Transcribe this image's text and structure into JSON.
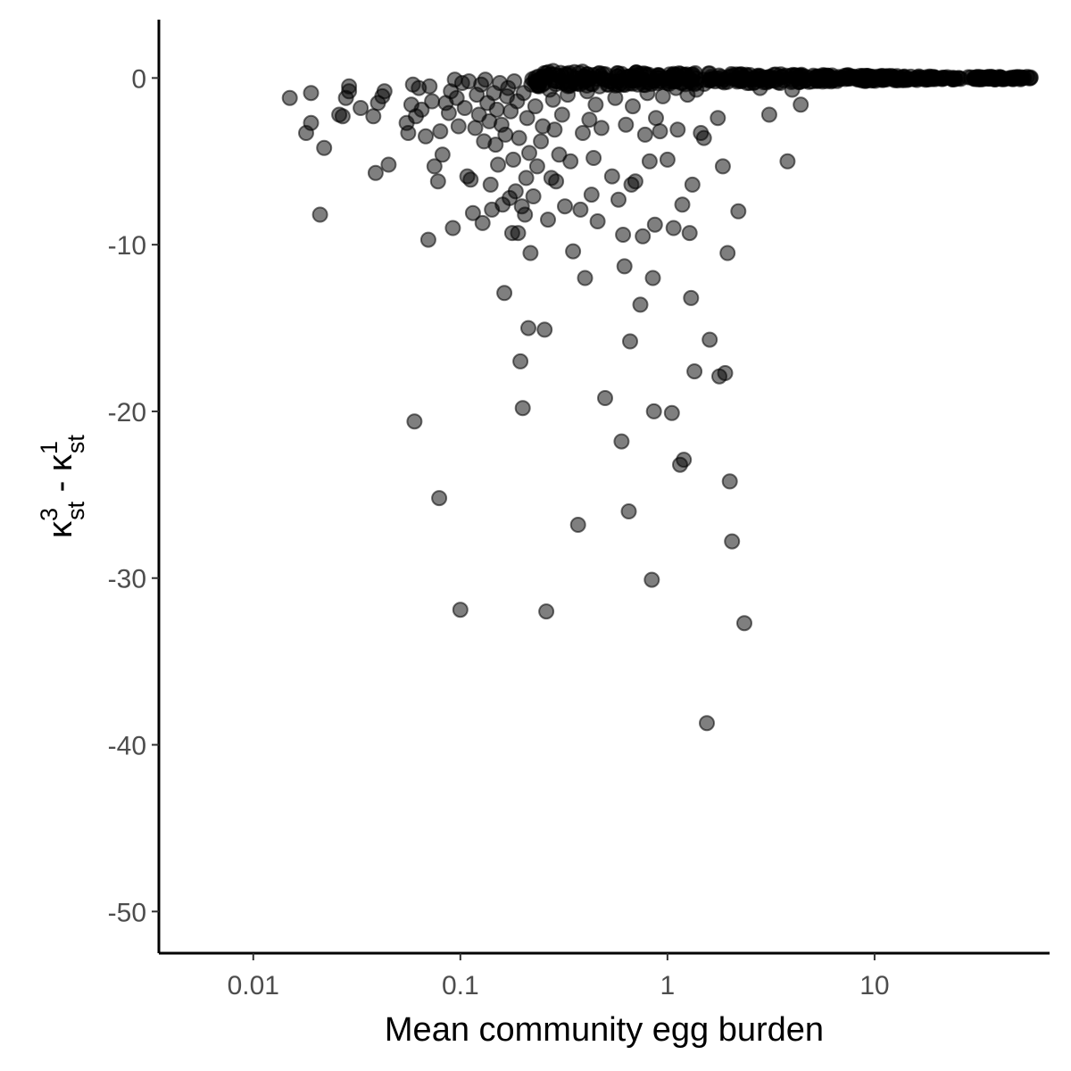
{
  "chart_data": {
    "type": "scatter",
    "xlabel": "Mean community egg burden",
    "ylabel_main": "κ",
    "ylabel_parts": {
      "a_sup": "3",
      "a_sub": "st",
      "minus": " - ",
      "b_sup": "1",
      "b_sub": "st"
    },
    "x_scale": "log10",
    "xlim": [
      0.0035,
      70
    ],
    "ylim": [
      -52.5,
      3.5
    ],
    "x_ticks": [
      0.01,
      0.1,
      1,
      10
    ],
    "x_tick_labels": [
      "0.01",
      "0.1",
      "1",
      "10"
    ],
    "y_ticks": [
      0,
      -10,
      -20,
      -30,
      -40,
      -50
    ],
    "y_tick_labels": [
      "0",
      "-10",
      "-20",
      "-30",
      "-40",
      "-50"
    ],
    "grid": false,
    "legend": "none",
    "marker_color": "#000000",
    "marker_opacity": 0.5,
    "series": [
      {
        "points": [
          [
            0.015,
            -1.2
          ],
          [
            0.019,
            -0.9
          ],
          [
            0.018,
            -3.3
          ],
          [
            0.019,
            -2.7
          ],
          [
            0.021,
            -8.2
          ],
          [
            0.022,
            -4.2
          ],
          [
            0.026,
            -2.2
          ],
          [
            0.027,
            -2.3
          ],
          [
            0.028,
            -1.2
          ],
          [
            0.029,
            -0.5
          ],
          [
            0.029,
            -0.8
          ],
          [
            0.033,
            -1.8
          ],
          [
            0.038,
            -2.3
          ],
          [
            0.039,
            -5.7
          ],
          [
            0.04,
            -1.5
          ],
          [
            0.042,
            -1.1
          ],
          [
            0.043,
            -0.8
          ],
          [
            0.045,
            -5.2
          ],
          [
            0.055,
            -2.7
          ],
          [
            0.056,
            -3.3
          ],
          [
            0.058,
            -1.6
          ],
          [
            0.059,
            -0.4
          ],
          [
            0.06,
            -20.6
          ],
          [
            0.061,
            -2.3
          ],
          [
            0.063,
            -0.6
          ],
          [
            0.065,
            -1.9
          ],
          [
            0.068,
            -3.5
          ],
          [
            0.07,
            -9.7
          ],
          [
            0.071,
            -0.5
          ],
          [
            0.073,
            -1.4
          ],
          [
            0.075,
            -5.3
          ],
          [
            0.078,
            -6.2
          ],
          [
            0.079,
            -25.2
          ],
          [
            0.08,
            -3.2
          ],
          [
            0.082,
            -4.6
          ],
          [
            0.085,
            -1.5
          ],
          [
            0.088,
            -2.1
          ],
          [
            0.09,
            -0.8
          ],
          [
            0.092,
            -9.0
          ],
          [
            0.094,
            -0.1
          ],
          [
            0.096,
            -1.2
          ],
          [
            0.098,
            -2.9
          ],
          [
            0.1,
            -31.9
          ],
          [
            0.102,
            -0.3
          ],
          [
            0.105,
            -1.8
          ],
          [
            0.108,
            -5.9
          ],
          [
            0.11,
            -0.2
          ],
          [
            0.112,
            -6.1
          ],
          [
            0.115,
            -8.1
          ],
          [
            0.118,
            -3.0
          ],
          [
            0.12,
            -1.0
          ],
          [
            0.123,
            -2.2
          ],
          [
            0.126,
            -0.4
          ],
          [
            0.128,
            -8.7
          ],
          [
            0.13,
            -3.8
          ],
          [
            0.132,
            -0.1
          ],
          [
            0.135,
            -1.5
          ],
          [
            0.138,
            -2.6
          ],
          [
            0.14,
            -6.4
          ],
          [
            0.142,
            -7.9
          ],
          [
            0.145,
            -0.9
          ],
          [
            0.148,
            -4.0
          ],
          [
            0.15,
            -1.9
          ],
          [
            0.152,
            -5.2
          ],
          [
            0.155,
            -0.3
          ],
          [
            0.158,
            -2.8
          ],
          [
            0.16,
            -7.6
          ],
          [
            0.163,
            -12.9
          ],
          [
            0.165,
            -3.4
          ],
          [
            0.168,
            -1.1
          ],
          [
            0.17,
            -0.6
          ],
          [
            0.173,
            -7.2
          ],
          [
            0.175,
            -2.0
          ],
          [
            0.178,
            -9.3
          ],
          [
            0.18,
            -4.9
          ],
          [
            0.182,
            -0.2
          ],
          [
            0.185,
            -6.8
          ],
          [
            0.188,
            -1.4
          ],
          [
            0.19,
            -9.3
          ],
          [
            0.192,
            -3.6
          ],
          [
            0.195,
            -17.0
          ],
          [
            0.198,
            -7.7
          ],
          [
            0.2,
            -19.8
          ],
          [
            0.202,
            -0.9
          ],
          [
            0.205,
            -8.2
          ],
          [
            0.208,
            -6.0
          ],
          [
            0.21,
            -2.4
          ],
          [
            0.213,
            -15.0
          ],
          [
            0.215,
            -4.5
          ],
          [
            0.218,
            -10.5
          ],
          [
            0.22,
            -0.4
          ],
          [
            0.225,
            -7.1
          ],
          [
            0.23,
            -1.7
          ],
          [
            0.235,
            -5.3
          ],
          [
            0.24,
            -0.1
          ],
          [
            0.245,
            -3.8
          ],
          [
            0.25,
            -2.9
          ],
          [
            0.255,
            -15.1
          ],
          [
            0.26,
            -32.0
          ],
          [
            0.265,
            -8.5
          ],
          [
            0.27,
            -0.7
          ],
          [
            0.275,
            -6.0
          ],
          [
            0.28,
            -1.3
          ],
          [
            0.285,
            -3.1
          ],
          [
            0.29,
            -6.2
          ],
          [
            0.295,
            -0.2
          ],
          [
            0.3,
            -4.6
          ],
          [
            0.31,
            -2.2
          ],
          [
            0.32,
            -7.7
          ],
          [
            0.33,
            -1.0
          ],
          [
            0.34,
            -5.0
          ],
          [
            0.35,
            -10.4
          ],
          [
            0.36,
            -0.3
          ],
          [
            0.37,
            -26.8
          ],
          [
            0.38,
            -7.9
          ],
          [
            0.39,
            -3.3
          ],
          [
            0.4,
            -12.0
          ],
          [
            0.41,
            -0.8
          ],
          [
            0.42,
            -2.5
          ],
          [
            0.43,
            -7.0
          ],
          [
            0.44,
            -4.8
          ],
          [
            0.45,
            -1.6
          ],
          [
            0.46,
            -8.6
          ],
          [
            0.47,
            -0.5
          ],
          [
            0.48,
            -3.0
          ],
          [
            0.5,
            -19.2
          ],
          [
            0.52,
            -0.2
          ],
          [
            0.54,
            -5.9
          ],
          [
            0.56,
            -1.2
          ],
          [
            0.58,
            -7.3
          ],
          [
            0.6,
            -21.8
          ],
          [
            0.61,
            -9.4
          ],
          [
            0.62,
            -11.3
          ],
          [
            0.63,
            -2.8
          ],
          [
            0.65,
            -26.0
          ],
          [
            0.66,
            -15.8
          ],
          [
            0.67,
            -6.4
          ],
          [
            0.68,
            -1.7
          ],
          [
            0.7,
            -6.2
          ],
          [
            0.72,
            -0.4
          ],
          [
            0.74,
            -13.6
          ],
          [
            0.76,
            -9.5
          ],
          [
            0.78,
            -3.4
          ],
          [
            0.8,
            -0.9
          ],
          [
            0.82,
            -5.0
          ],
          [
            0.84,
            -30.1
          ],
          [
            0.85,
            -12.0
          ],
          [
            0.86,
            -20.0
          ],
          [
            0.87,
            -8.8
          ],
          [
            0.88,
            -2.4
          ],
          [
            0.9,
            -0.2
          ],
          [
            0.92,
            -3.2
          ],
          [
            0.95,
            -1.1
          ],
          [
            1.0,
            -4.9
          ],
          [
            1.05,
            -20.1
          ],
          [
            1.07,
            -9.0
          ],
          [
            1.1,
            -0.6
          ],
          [
            1.12,
            -3.1
          ],
          [
            1.15,
            -23.2
          ],
          [
            1.18,
            -7.6
          ],
          [
            1.2,
            -22.9
          ],
          [
            1.25,
            -1.0
          ],
          [
            1.28,
            -9.3
          ],
          [
            1.3,
            -13.2
          ],
          [
            1.32,
            -6.4
          ],
          [
            1.35,
            -17.6
          ],
          [
            1.38,
            -0.7
          ],
          [
            1.45,
            -3.3
          ],
          [
            1.5,
            -3.6
          ],
          [
            1.55,
            -38.7
          ],
          [
            1.6,
            -15.7
          ],
          [
            1.7,
            -0.2
          ],
          [
            1.75,
            -2.4
          ],
          [
            1.78,
            -17.9
          ],
          [
            1.85,
            -5.3
          ],
          [
            1.9,
            -17.7
          ],
          [
            1.95,
            -10.5
          ],
          [
            2.0,
            -24.2
          ],
          [
            2.05,
            -27.8
          ],
          [
            2.2,
            -8.0
          ],
          [
            2.35,
            -32.7
          ],
          [
            2.5,
            -0.3
          ],
          [
            2.8,
            -0.6
          ],
          [
            3.1,
            -2.2
          ],
          [
            3.5,
            -0.3
          ],
          [
            3.8,
            -5.0
          ],
          [
            4.0,
            -0.7
          ],
          [
            4.4,
            -1.6
          ]
        ]
      }
    ],
    "series_near_zero": [
      {
        "x_range": [
          0.22,
          58
        ],
        "y_range": [
          -0.6,
          0.4
        ],
        "count": 520,
        "note_visible": false
      }
    ]
  }
}
